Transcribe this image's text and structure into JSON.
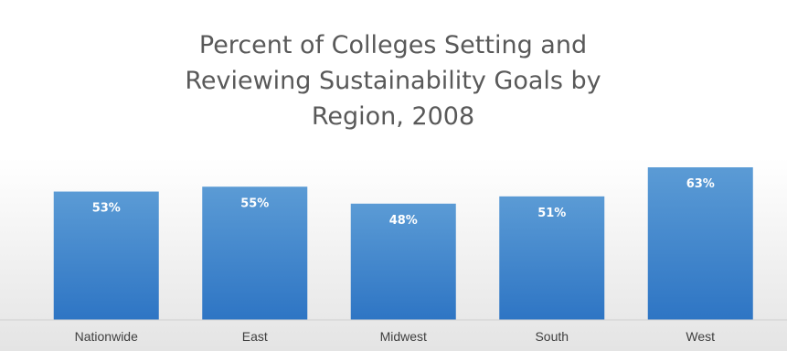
{
  "chart_data": {
    "type": "bar",
    "title": "Percent of Colleges Setting and Reviewing Sustainability Goals by Region, 2008",
    "title_lines": [
      "Percent of Colleges Setting and",
      "Reviewing Sustainability Goals by",
      "Region, 2008"
    ],
    "categories": [
      "Nationwide",
      "East",
      "Midwest",
      "South",
      "West"
    ],
    "values": [
      53,
      55,
      48,
      51,
      63
    ],
    "data_labels": [
      "53%",
      "55%",
      "48%",
      "51%",
      "63%"
    ],
    "unit": "%",
    "xlabel": "",
    "ylabel": "",
    "ylim": [
      0,
      100
    ],
    "grid": false,
    "legend": "none",
    "colors": {
      "bar_top": "#5b9bd5",
      "bar_bottom": "#2e75c4",
      "background_top": "#ffffff",
      "background_bottom": "#e6e6e6",
      "title": "#595959",
      "category_text": "#404040",
      "data_label_text": "#ffffff"
    }
  }
}
